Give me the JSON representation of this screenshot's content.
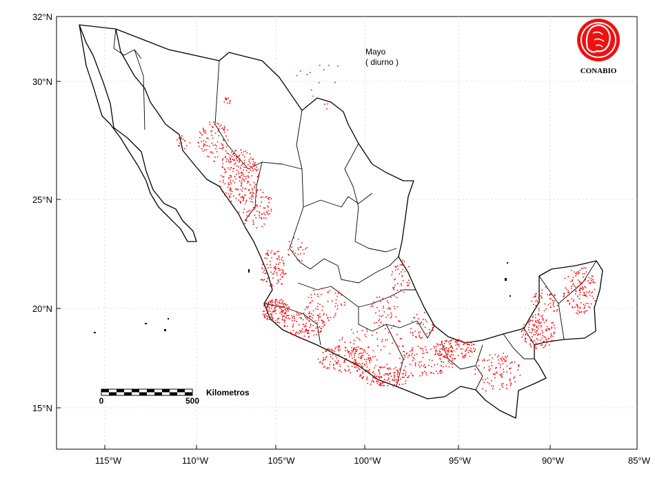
{
  "map": {
    "month_label": "Mayo",
    "period_label": "( diurno )",
    "axes": {
      "lon_ticks": [
        "115°W",
        "110°W",
        "105°W",
        "100°W",
        "95°W",
        "90°W",
        "85°W"
      ],
      "lat_ticks": [
        "32°N",
        "30°N",
        "25°N",
        "20°N",
        "15°N"
      ],
      "lon_range": [
        -118,
        -85
      ],
      "lat_range": [
        13.2,
        32
      ],
      "grid": true
    },
    "scale_bar": {
      "title": "Kilometros",
      "start_label": "0",
      "end_label": "500"
    },
    "logo": {
      "text": "CONABIO"
    },
    "colors": {
      "hotspot": "#ff0000",
      "boundary": "#000000",
      "grid": "#d8d8d8",
      "logo_red": "#ee1111"
    }
  }
}
